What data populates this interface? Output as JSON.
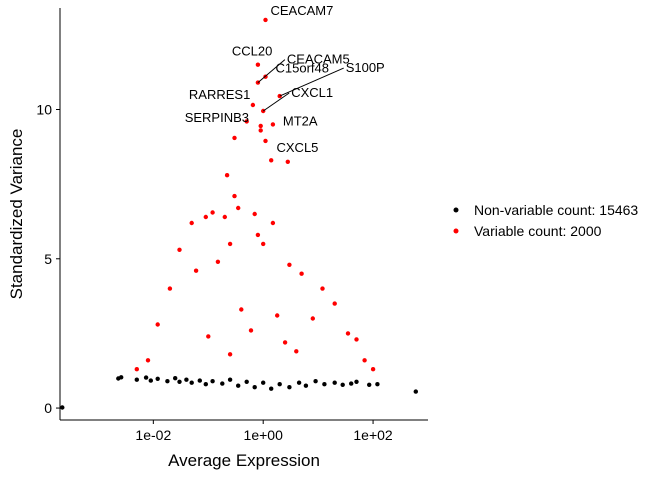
{
  "chart_data": {
    "type": "scatter",
    "title": "",
    "xlabel": "Average Expression",
    "ylabel": "Standardized Variance",
    "x_scale": "log10",
    "xlim": [
      0.0002,
      1000
    ],
    "ylim": [
      -0.4,
      13.4
    ],
    "x_ticks": [
      0.01,
      1,
      100
    ],
    "x_tick_labels": [
      "1e-02",
      "1e+00",
      "1e+02"
    ],
    "y_ticks": [
      0,
      5,
      10
    ],
    "y_tick_labels": [
      "0",
      "5",
      "10"
    ],
    "grid": false,
    "legend_position": "right",
    "series": [
      {
        "name": "Non-variable count: 15463",
        "color": "#000000",
        "points": [
          [
            0.00022,
            0.02
          ],
          [
            0.0023,
            0.99
          ],
          [
            0.0026,
            1.03
          ],
          [
            0.005,
            0.95
          ],
          [
            0.0074,
            1.02
          ],
          [
            0.009,
            0.92
          ],
          [
            0.012,
            0.98
          ],
          [
            0.018,
            0.9
          ],
          [
            0.025,
            1.0
          ],
          [
            0.03,
            0.88
          ],
          [
            0.04,
            0.95
          ],
          [
            0.05,
            0.85
          ],
          [
            0.07,
            0.92
          ],
          [
            0.09,
            0.8
          ],
          [
            0.12,
            0.9
          ],
          [
            0.18,
            0.82
          ],
          [
            0.25,
            0.95
          ],
          [
            0.35,
            0.75
          ],
          [
            0.5,
            0.88
          ],
          [
            0.7,
            0.7
          ],
          [
            1.0,
            0.85
          ],
          [
            1.4,
            0.65
          ],
          [
            2.0,
            0.8
          ],
          [
            3.0,
            0.7
          ],
          [
            4.5,
            0.85
          ],
          [
            6.0,
            0.75
          ],
          [
            9.0,
            0.9
          ],
          [
            13.0,
            0.8
          ],
          [
            20.0,
            0.85
          ],
          [
            28.0,
            0.78
          ],
          [
            40.0,
            0.82
          ],
          [
            50.0,
            0.88
          ],
          [
            85.0,
            0.78
          ],
          [
            120.0,
            0.8
          ],
          [
            600.0,
            0.55
          ]
        ]
      },
      {
        "name": "Variable count: 2000",
        "color": "#ff0000",
        "points": [
          [
            1.1,
            13.0
          ],
          [
            0.8,
            11.5
          ],
          [
            1.1,
            11.1
          ],
          [
            0.8,
            10.9
          ],
          [
            2.0,
            10.45
          ],
          [
            1.0,
            9.95
          ],
          [
            1.5,
            9.5
          ],
          [
            0.9,
            9.45
          ],
          [
            0.65,
            10.15
          ],
          [
            0.5,
            9.6
          ],
          [
            0.9,
            9.3
          ],
          [
            1.1,
            8.95
          ],
          [
            1.4,
            8.3
          ],
          [
            0.3,
            9.05
          ],
          [
            2.8,
            8.25
          ],
          [
            0.22,
            7.8
          ],
          [
            0.3,
            7.1
          ],
          [
            0.35,
            6.7
          ],
          [
            0.12,
            6.55
          ],
          [
            0.09,
            6.4
          ],
          [
            0.2,
            6.4
          ],
          [
            0.05,
            6.2
          ],
          [
            0.7,
            6.5
          ],
          [
            1.5,
            6.2
          ],
          [
            0.8,
            5.8
          ],
          [
            0.03,
            5.3
          ],
          [
            0.25,
            5.5
          ],
          [
            1.0,
            5.5
          ],
          [
            3.0,
            4.8
          ],
          [
            5.0,
            4.5
          ],
          [
            0.15,
            4.9
          ],
          [
            0.06,
            4.6
          ],
          [
            12.0,
            4.0
          ],
          [
            20.0,
            3.5
          ],
          [
            0.02,
            4.0
          ],
          [
            0.012,
            2.8
          ],
          [
            8.0,
            3.0
          ],
          [
            35.0,
            2.5
          ],
          [
            50.0,
            2.3
          ],
          [
            100.0,
            1.3
          ],
          [
            70.0,
            1.6
          ],
          [
            0.008,
            1.6
          ],
          [
            0.005,
            1.3
          ],
          [
            0.4,
            3.3
          ],
          [
            1.8,
            3.1
          ],
          [
            0.6,
            2.6
          ],
          [
            2.5,
            2.2
          ],
          [
            0.1,
            2.4
          ],
          [
            4.0,
            1.9
          ],
          [
            0.25,
            1.8
          ]
        ]
      }
    ],
    "annotations": [
      {
        "label": "CEACAM7",
        "x": 1.1,
        "y": 13.0
      },
      {
        "label": "CCL20",
        "x": 0.8,
        "y": 11.5
      },
      {
        "label": "CEACAM5",
        "x": 0.8,
        "y": 10.9
      },
      {
        "label": "C15orf48",
        "x": 1.1,
        "y": 11.1
      },
      {
        "label": "S100P",
        "x": 2.0,
        "y": 10.45
      },
      {
        "label": "RARRES1",
        "x": 0.65,
        "y": 10.15
      },
      {
        "label": "CXCL1",
        "x": 1.0,
        "y": 9.95
      },
      {
        "label": "MT2A",
        "x": 1.5,
        "y": 9.5
      },
      {
        "label": "SERPINB3",
        "x": 0.9,
        "y": 9.45
      },
      {
        "label": "CXCL5",
        "x": 1.1,
        "y": 8.95
      }
    ]
  }
}
